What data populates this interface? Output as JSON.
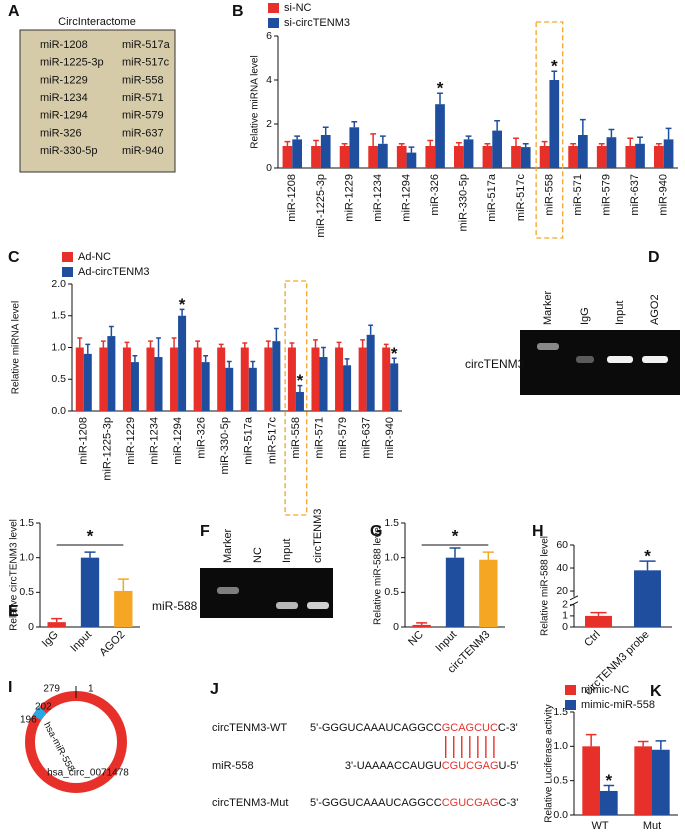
{
  "table": {
    "label": "A",
    "title": "CircInteractome",
    "columns": [
      [
        "miR-1208",
        "miR-1225-3p",
        "miR-1229",
        "miR-1234",
        "miR-1294",
        "miR-326",
        "miR-330-5p"
      ],
      [
        "miR-517a",
        "miR-517c",
        "miR-558",
        "miR-571",
        "miR-579",
        "miR-637",
        "miR-940"
      ]
    ]
  },
  "chart_data": [
    {
      "label": "B",
      "type": "bar",
      "y_label": "Relative miRNA level",
      "categories": [
        "miR-1208",
        "miR-1225-3p",
        "miR-1229",
        "miR-1234",
        "miR-1294",
        "miR-326",
        "miR-330-5p",
        "miR-517a",
        "miR-517c",
        "miR-558",
        "miR-571",
        "miR-579",
        "miR-637",
        "miR-940"
      ],
      "series": [
        {
          "name": "si-NC",
          "color": "#e8302a",
          "values": [
            1,
            1,
            1,
            1,
            1,
            1,
            1,
            1,
            1,
            1,
            1,
            1,
            1,
            1
          ],
          "errors": [
            0.2,
            0.25,
            0.1,
            0.55,
            0.1,
            0.25,
            0.15,
            0.1,
            0.35,
            0.2,
            0.1,
            0.1,
            0.35,
            0.1
          ]
        },
        {
          "name": "si-circTENM3",
          "color": "#1f4e9e",
          "values": [
            1.3,
            1.5,
            1.85,
            1.1,
            0.7,
            2.9,
            1.3,
            1.7,
            0.95,
            4.0,
            1.5,
            1.4,
            1.1,
            1.3
          ],
          "errors": [
            0.15,
            0.35,
            0.25,
            0.35,
            0.25,
            0.5,
            0.15,
            0.45,
            0.15,
            0.4,
            0.7,
            0.35,
            0.3,
            0.5
          ]
        }
      ],
      "ylim": [
        0,
        6
      ],
      "yticks": [
        0,
        2,
        4,
        6
      ],
      "annotations": [
        {
          "text": "*",
          "category": "miR-326",
          "series": "si-circTENM3"
        },
        {
          "text": "*",
          "category": "miR-558",
          "series": "si-circTENM3"
        }
      ],
      "highlight": "miR-558",
      "highlight_color": "#f5a623"
    },
    {
      "label": "C",
      "type": "bar",
      "y_label": "Relative miRNA level",
      "categories": [
        "miR-1208",
        "miR-1225-3p",
        "miR-1229",
        "miR-1234",
        "miR-1294",
        "miR-326",
        "miR-330-5p",
        "miR-517a",
        "miR-517c",
        "miR-558",
        "miR-571",
        "miR-579",
        "miR-637",
        "miR-940"
      ],
      "series": [
        {
          "name": "Ad-NC",
          "color": "#e8302a",
          "values": [
            1,
            1,
            1,
            1,
            1,
            1,
            1,
            1,
            1,
            1,
            1,
            1,
            1,
            1
          ],
          "errors": [
            0.15,
            0.1,
            0.08,
            0.1,
            0.15,
            0.1,
            0.05,
            0.07,
            0.1,
            0.07,
            0.12,
            0.08,
            0.12,
            0.05
          ]
        },
        {
          "name": "Ad-circTENM3",
          "color": "#1f4e9e",
          "values": [
            0.9,
            1.18,
            0.77,
            0.85,
            1.5,
            0.77,
            0.68,
            0.68,
            1.1,
            0.3,
            0.85,
            0.72,
            1.2,
            0.75
          ],
          "errors": [
            0.15,
            0.15,
            0.1,
            0.3,
            0.1,
            0.1,
            0.1,
            0.1,
            0.2,
            0.1,
            0.15,
            0.1,
            0.15,
            0.08
          ]
        }
      ],
      "ylim": [
        0,
        2
      ],
      "yticks": [
        {
          "value": 0,
          "label": "0.0"
        },
        0.5,
        {
          "value": 1,
          "label": "1.0"
        },
        1.5,
        {
          "value": 2,
          "label": "2.0"
        }
      ],
      "annotations": [
        {
          "text": "*",
          "category": "miR-1294",
          "series": "Ad-circTENM3"
        },
        {
          "text": "*",
          "category": "miR-558",
          "series": "Ad-circTENM3"
        },
        {
          "text": "*",
          "category": "miR-940",
          "series": "Ad-circTENM3"
        }
      ],
      "highlight": "miR-558",
      "highlight_color": "#f5a623"
    },
    {
      "label": "E",
      "type": "bar",
      "y_label": "Relative circTENM3 level",
      "categories": [
        "IgG",
        "Input",
        "AGO2"
      ],
      "values": [
        0.07,
        1.0,
        0.52
      ],
      "errors": [
        0.05,
        0.08,
        0.17
      ],
      "colors": [
        "#e8302a",
        "#1f4e9e",
        "#f5a623"
      ],
      "ylim": [
        0,
        1.5
      ],
      "yticks": [
        0,
        0.5,
        {
          "value": 1,
          "label": "1.0"
        },
        1.5
      ],
      "significance": {
        "text": "*",
        "from": "IgG",
        "to": "AGO2"
      }
    },
    {
      "label": "G",
      "type": "bar",
      "y_label": "Relative miR-588 level",
      "categories": [
        "NC",
        "Input",
        "circTENM3"
      ],
      "values": [
        0.03,
        1.0,
        0.97
      ],
      "errors": [
        0.03,
        0.14,
        0.11
      ],
      "colors": [
        "#e8302a",
        "#1f4e9e",
        "#f5a623"
      ],
      "ylim": [
        0,
        1.5
      ],
      "yticks": [
        0,
        0.5,
        {
          "value": 1,
          "label": "1.0"
        },
        1.5
      ],
      "significance": {
        "text": "*",
        "from": "NC",
        "to": "circTENM3"
      }
    },
    {
      "label": "H",
      "type": "bar",
      "y_label": "Relative miR-588 level",
      "categories": [
        "Ctrl",
        "circTENM3 probe"
      ],
      "values": [
        1.0,
        38
      ],
      "errors": [
        0.3,
        8
      ],
      "colors": [
        "#e8302a",
        "#1f4e9e"
      ],
      "ylim": [
        0,
        60
      ],
      "ybreak": [
        2,
        15
      ],
      "yticks": [
        0,
        1,
        2,
        20,
        40,
        60
      ],
      "annotations": [
        {
          "text": "*",
          "category": "circTENM3 probe"
        }
      ]
    },
    {
      "label": "K",
      "type": "bar",
      "y_label": "Relative Luciferase activity",
      "categories": [
        "WT",
        "Mut"
      ],
      "series": [
        {
          "name": "mimic-NC",
          "color": "#e8302a",
          "values": [
            1.0,
            1.0
          ],
          "errors": [
            0.17,
            0.07
          ]
        },
        {
          "name": "mimic-miR-558",
          "color": "#1f4e9e",
          "values": [
            0.35,
            0.95
          ],
          "errors": [
            0.08,
            0.13
          ]
        }
      ],
      "ylim": [
        0,
        1.5
      ],
      "yticks": [
        {
          "value": 0,
          "label": "0.0"
        },
        0.5,
        {
          "value": 1,
          "label": "1.0"
        },
        1.5
      ],
      "annotations": [
        {
          "text": "*",
          "category": "WT",
          "series": "mimic-miR-558"
        }
      ]
    }
  ],
  "gels": [
    {
      "label": "D",
      "lanes": [
        "Marker",
        "IgG",
        "Input",
        "AGO2"
      ],
      "target": "circTENM3"
    },
    {
      "label": "F",
      "lanes": [
        "Marker",
        "NC",
        "Input",
        "circTENM3"
      ],
      "target": "miR-588"
    }
  ],
  "diagram": {
    "label": "I",
    "positions": [
      279,
      1,
      202,
      196
    ],
    "site": "hsa-miR-558",
    "name": "hsa_circ_0071478"
  },
  "sequences": {
    "label": "J",
    "rows": [
      {
        "name": "circTENM3-WT",
        "parts": [
          "5'-GGGUCAAAUCAGGCC",
          "GCAGCUC",
          "C-3'"
        ]
      },
      {
        "name": "miR-558",
        "parts": [
          "3'-UAAAACCAUGU",
          "CGUCGAG",
          "U-5'"
        ]
      },
      {
        "name": "circTENM3-Mut",
        "parts": [
          "5'-GGGUCAAAUCAGGCC",
          "CGUCGAG",
          "C-3'"
        ]
      }
    ]
  }
}
